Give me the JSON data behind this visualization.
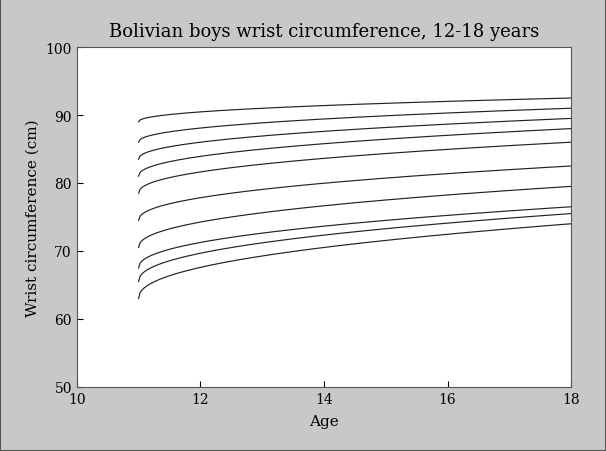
{
  "title": "Bolivian boys wrist circumference, 12-18 years",
  "xlabel": "Age",
  "ylabel": "Wrist circumference (cm)",
  "xlim": [
    10,
    18
  ],
  "ylim": [
    50,
    100
  ],
  "xticks": [
    10,
    12,
    14,
    16,
    18
  ],
  "yticks": [
    50,
    60,
    70,
    80,
    90,
    100
  ],
  "x_start": 11,
  "x_end": 18,
  "fig_background_color": "#c8c8c8",
  "plot_background_color": "#ffffff",
  "line_color": "#222222",
  "percentile_curves": [
    {
      "age11": 63.0,
      "age18": 74.0,
      "growth_rate": 3.0
    },
    {
      "age11": 65.5,
      "age18": 75.5,
      "growth_rate": 2.8
    },
    {
      "age11": 67.5,
      "age18": 76.5,
      "growth_rate": 2.6
    },
    {
      "age11": 70.5,
      "age18": 79.5,
      "growth_rate": 2.4
    },
    {
      "age11": 74.5,
      "age18": 82.5,
      "growth_rate": 2.2
    },
    {
      "age11": 78.5,
      "age18": 86.0,
      "growth_rate": 2.0
    },
    {
      "age11": 81.0,
      "age18": 88.0,
      "growth_rate": 1.8
    },
    {
      "age11": 83.5,
      "age18": 89.5,
      "growth_rate": 1.6
    },
    {
      "age11": 86.0,
      "age18": 91.0,
      "growth_rate": 1.5
    },
    {
      "age11": 89.0,
      "age18": 92.5,
      "growth_rate": 1.3
    }
  ]
}
